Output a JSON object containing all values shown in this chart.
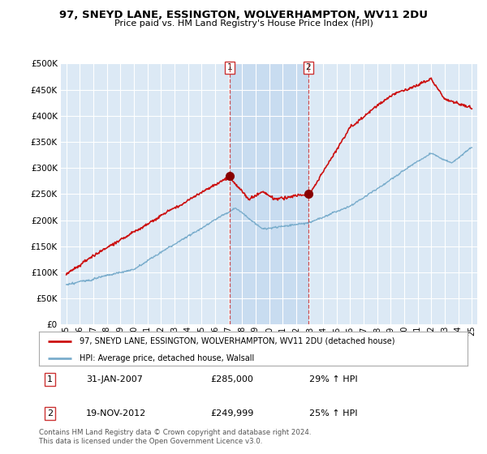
{
  "title": "97, SNEYD LANE, ESSINGTON, WOLVERHAMPTON, WV11 2DU",
  "subtitle": "Price paid vs. HM Land Registry's House Price Index (HPI)",
  "background_color": "#ffffff",
  "plot_bg_color": "#dce9f5",
  "plot_band_color": "#c8dcf0",
  "grid_color": "#bbccdd",
  "red_line_label": "97, SNEYD LANE, ESSINGTON, WOLVERHAMPTON, WV11 2DU (detached house)",
  "blue_line_label": "HPI: Average price, detached house, Walsall",
  "annotation1_date": "31-JAN-2007",
  "annotation1_price": "£285,000",
  "annotation1_hpi": "29% ↑ HPI",
  "annotation2_date": "19-NOV-2012",
  "annotation2_price": "£249,999",
  "annotation2_hpi": "25% ↑ HPI",
  "footer": "Contains HM Land Registry data © Crown copyright and database right 2024.\nThis data is licensed under the Open Government Licence v3.0.",
  "ylim": [
    0,
    500000
  ],
  "yticks": [
    0,
    50000,
    100000,
    150000,
    200000,
    250000,
    300000,
    350000,
    400000,
    450000,
    500000
  ],
  "sale1_x": 2007.08,
  "sale1_y": 285000,
  "sale2_x": 2012.89,
  "sale2_y": 249999,
  "vline1_x": 2007.08,
  "vline2_x": 2012.89,
  "xmin": 1995,
  "xmax": 2025
}
